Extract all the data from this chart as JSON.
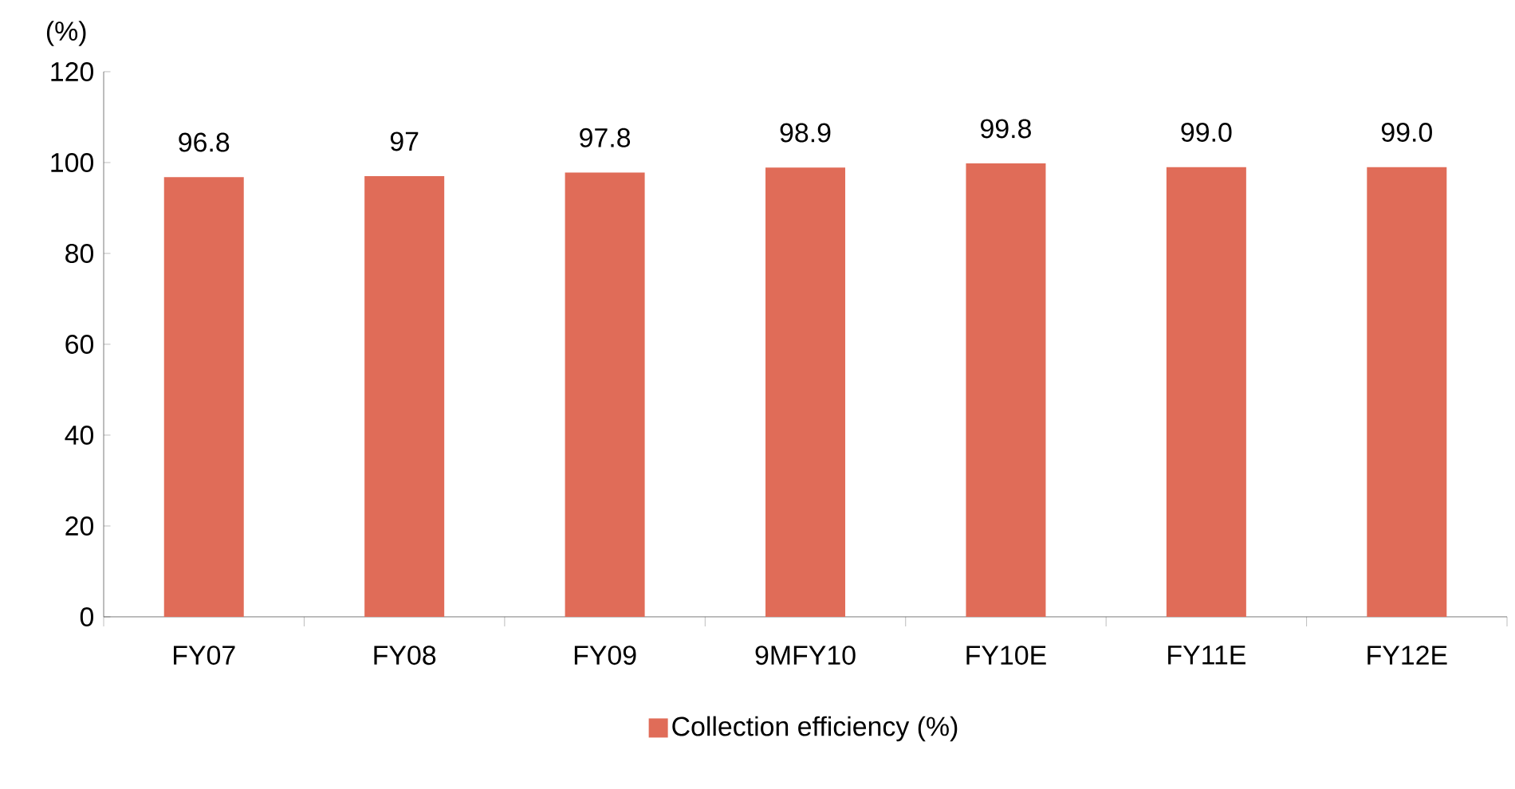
{
  "chart_data": {
    "type": "bar",
    "ylabel": "(%)",
    "categories": [
      "FY07",
      "FY08",
      "FY09",
      "9MFY10",
      "FY10E",
      "FY11E",
      "FY12E"
    ],
    "series": [
      {
        "name": "Collection efficiency (%)",
        "color": "#e06c58",
        "values": [
          96.8,
          97,
          97.8,
          98.9,
          99.8,
          99.0,
          99.0
        ],
        "value_labels": [
          "96.8",
          "97",
          "97.8",
          "98.9",
          "99.8",
          "99.0",
          "99.0"
        ]
      }
    ],
    "ylim": [
      0,
      120
    ],
    "yticks": [
      0,
      20,
      40,
      60,
      80,
      100,
      120
    ],
    "grid": false,
    "legend": "bottom"
  }
}
